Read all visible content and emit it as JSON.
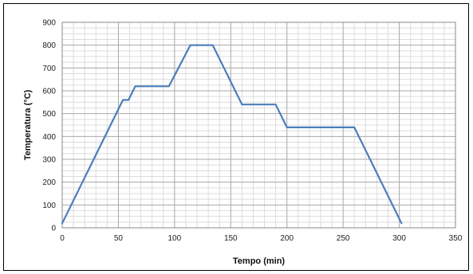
{
  "chart_data": {
    "type": "line",
    "title": "",
    "xlabel": "Tempo (min)",
    "ylabel": "Temperatura (°C)",
    "xlim": [
      0,
      350
    ],
    "ylim": [
      0,
      900
    ],
    "x_ticks": [
      0,
      50,
      100,
      150,
      200,
      250,
      300,
      350
    ],
    "y_ticks": [
      0,
      100,
      200,
      300,
      400,
      500,
      600,
      700,
      800,
      900
    ],
    "x_tick_labels": [
      "0",
      "50",
      "100",
      "150",
      "200",
      "250",
      "300",
      "350"
    ],
    "y_tick_labels": [
      "0",
      "100",
      "200",
      "300",
      "400",
      "500",
      "600",
      "700",
      "800",
      "900"
    ],
    "grid": true,
    "legend": "none",
    "series": [
      {
        "color": "#4a7ebb",
        "x": [
          0,
          54,
          59,
          65,
          95,
          114,
          134,
          160,
          190,
          200,
          260,
          302
        ],
        "y": [
          20,
          560,
          560,
          620,
          620,
          800,
          800,
          540,
          540,
          440,
          440,
          20
        ]
      }
    ]
  }
}
